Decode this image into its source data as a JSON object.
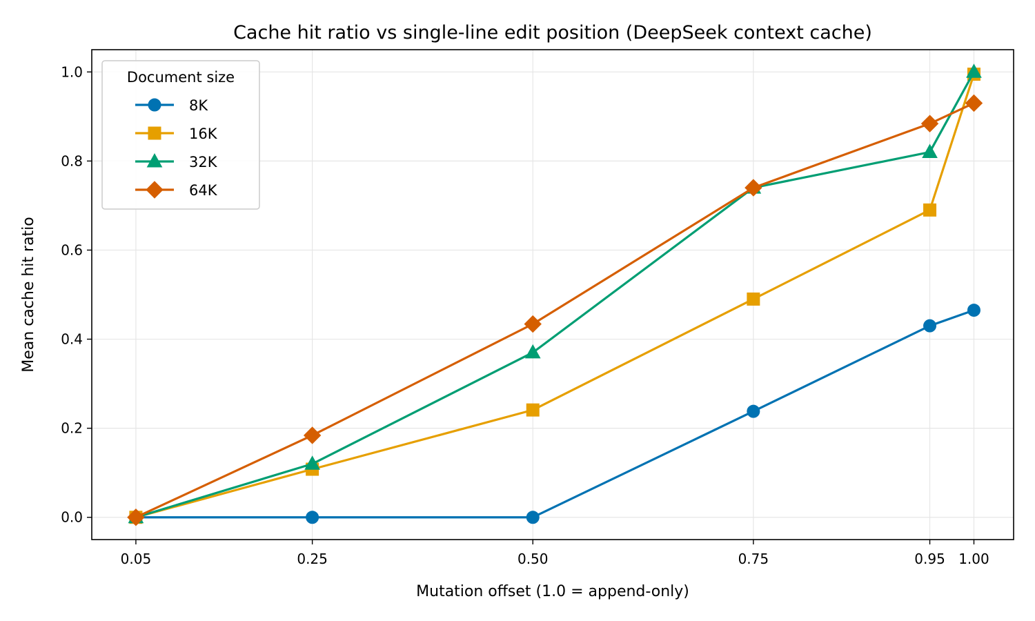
{
  "chart_data": {
    "type": "line",
    "title": "Cache hit ratio vs single-line edit position (DeepSeek context cache)",
    "xlabel": "Mutation offset (1.0 = append-only)",
    "ylabel": "Mean cache hit ratio",
    "xlim": [
      0.0,
      1.045
    ],
    "ylim": [
      -0.05,
      1.05
    ],
    "xticks": [
      0.05,
      0.25,
      0.5,
      0.75,
      0.95,
      1.0
    ],
    "xtick_labels": [
      "0.05",
      "0.25",
      "0.50",
      "0.75",
      "0.95",
      "1.00"
    ],
    "yticks": [
      0.0,
      0.2,
      0.4,
      0.6,
      0.8,
      1.0
    ],
    "ytick_labels": [
      "0.0",
      "0.2",
      "0.4",
      "0.6",
      "0.8",
      "1.0"
    ],
    "grid": true,
    "legend": {
      "title": "Document size",
      "placement": "top-left"
    },
    "series": [
      {
        "name": "8K",
        "color": "#0072b2",
        "marker": "circle",
        "x": [
          0.05,
          0.25,
          0.5,
          0.75,
          0.95,
          1.0
        ],
        "y": [
          0.0,
          0.0,
          0.0,
          0.238,
          0.43,
          0.465
        ]
      },
      {
        "name": "16K",
        "color": "#e69f00",
        "marker": "square",
        "x": [
          0.05,
          0.25,
          0.5,
          0.75,
          0.95,
          1.0
        ],
        "y": [
          0.0,
          0.108,
          0.241,
          0.49,
          0.69,
          0.995
        ]
      },
      {
        "name": "32K",
        "color": "#009e73",
        "marker": "triangle",
        "x": [
          0.05,
          0.25,
          0.5,
          0.75,
          0.95,
          1.0
        ],
        "y": [
          0.0,
          0.12,
          0.37,
          0.74,
          0.82,
          1.0
        ]
      },
      {
        "name": "64K",
        "color": "#d55e00",
        "marker": "diamond",
        "x": [
          0.05,
          0.25,
          0.5,
          0.75,
          0.95,
          1.0
        ],
        "y": [
          0.0,
          0.184,
          0.434,
          0.74,
          0.884,
          0.93
        ]
      }
    ]
  }
}
